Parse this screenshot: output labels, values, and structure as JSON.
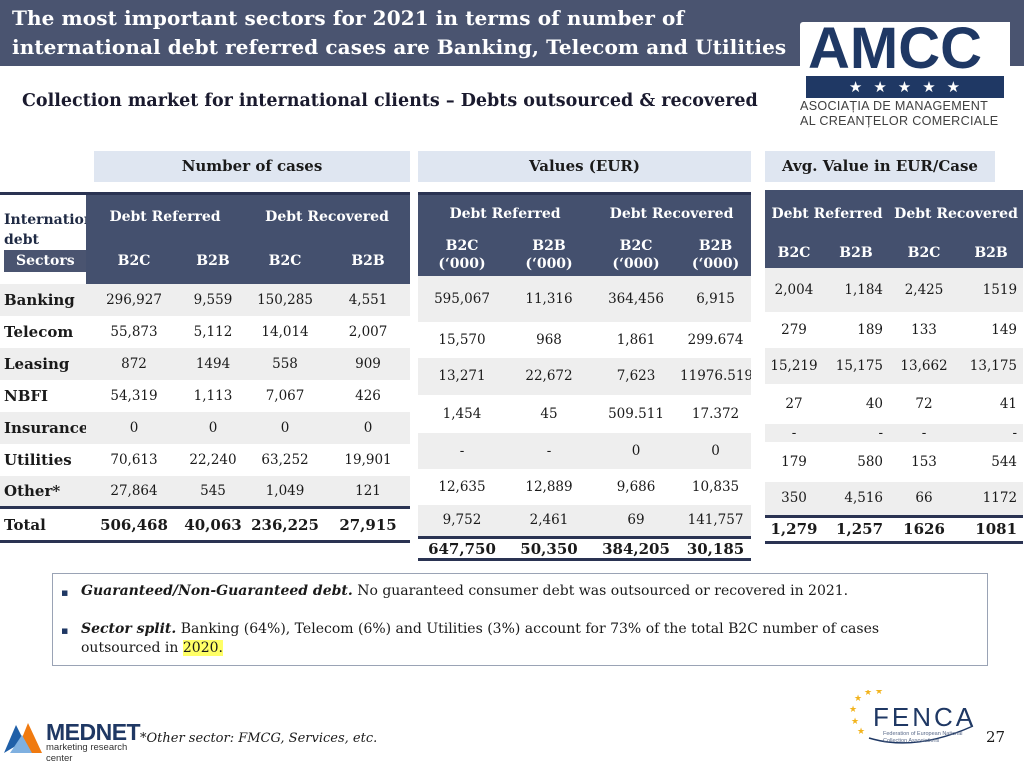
{
  "title": "The most important sectors for 2021 in terms of number of international debt referred cases are Banking, Telecom and Utilities",
  "logo": {
    "brand": "AMCC",
    "stars": "★★★★★",
    "subtitle_line1": "ASOCIAȚIA DE MANAGEMENT",
    "subtitle_line2": "AL CREANȚELOR COMERCIALE"
  },
  "subtitle": "Collection market for international clients – Debts outsourced & recovered",
  "groups": {
    "cases": "Number of cases",
    "values": "Values (EUR)",
    "avg": "Avg. Value in EUR/Case"
  },
  "cases_table": {
    "corner_label": "International debt",
    "sectors_label": "Sectors",
    "referred": "Debt Referred",
    "recovered": "Debt Recovered",
    "b2c": "B2C",
    "b2b": "B2B",
    "rows": [
      {
        "sector": "Banking",
        "ref_b2c": "296,927",
        "ref_b2b": "9,559",
        "rec_b2c": "150,285",
        "rec_b2b": "4,551"
      },
      {
        "sector": "Telecom",
        "ref_b2c": "55,873",
        "ref_b2b": "5,112",
        "rec_b2c": "14,014",
        "rec_b2b": "2,007"
      },
      {
        "sector": "Leasing",
        "ref_b2c": "872",
        "ref_b2b": "1494",
        "rec_b2c": "558",
        "rec_b2b": "909"
      },
      {
        "sector": "NBFI",
        "ref_b2c": "54,319",
        "ref_b2b": "1,113",
        "rec_b2c": "7,067",
        "rec_b2b": "426"
      },
      {
        "sector": "Insurance",
        "ref_b2c": "0",
        "ref_b2b": "0",
        "rec_b2c": "0",
        "rec_b2b": "0"
      },
      {
        "sector": "Utilities",
        "ref_b2c": "70,613",
        "ref_b2b": "22,240",
        "rec_b2c": "63,252",
        "rec_b2b": "19,901"
      },
      {
        "sector": "Other*",
        "ref_b2c": "27,864",
        "ref_b2b": "545",
        "rec_b2c": "1,049",
        "rec_b2b": "121"
      }
    ],
    "total": {
      "sector": "Total",
      "ref_b2c": "506,468",
      "ref_b2b": "40,063",
      "rec_b2c": "236,225",
      "rec_b2b": "27,915"
    }
  },
  "values_table": {
    "referred": "Debt Referred",
    "recovered": "Debt Recovered",
    "b2c": "B2C",
    "b2b": "B2B",
    "unit": "(‘000)",
    "rows": [
      {
        "ref_b2c": "595,067",
        "ref_b2b": "11,316",
        "rec_b2c": "364,456",
        "rec_b2b": "6,915"
      },
      {
        "ref_b2c": "15,570",
        "ref_b2b": "968",
        "rec_b2c": "1,861",
        "rec_b2b": "299.674"
      },
      {
        "ref_b2c": "13,271",
        "ref_b2b": "22,672",
        "rec_b2c": "7,623",
        "rec_b2b": "11976.519"
      },
      {
        "ref_b2c": "1,454",
        "ref_b2b": "45",
        "rec_b2c": "509.511",
        "rec_b2b": "17.372"
      },
      {
        "ref_b2c": "-",
        "ref_b2b": "-",
        "rec_b2c": "0",
        "rec_b2b": "0"
      },
      {
        "ref_b2c": "12,635",
        "ref_b2b": "12,889",
        "rec_b2c": "9,686",
        "rec_b2b": "10,835"
      },
      {
        "ref_b2c": "9,752",
        "ref_b2b": "2,461",
        "rec_b2c": "69",
        "rec_b2b": "141,757"
      }
    ],
    "total": {
      "ref_b2c": "647,750",
      "ref_b2b": "50,350",
      "rec_b2c": "384,205",
      "rec_b2b": "30,185"
    }
  },
  "avg_table": {
    "referred": "Debt Referred",
    "recovered": "Debt Recovered",
    "b2c": "B2C",
    "b2b": "B2B",
    "rows": [
      {
        "ref_b2c": "2,004",
        "ref_b2b": "1,184",
        "rec_b2c": "2,425",
        "rec_b2b": "1519"
      },
      {
        "ref_b2c": "279",
        "ref_b2b": "189",
        "rec_b2c": "133",
        "rec_b2b": "149"
      },
      {
        "ref_b2c": "15,219",
        "ref_b2b": "15,175",
        "rec_b2c": "13,662",
        "rec_b2b": "13,175"
      },
      {
        "ref_b2c": "27",
        "ref_b2b": "40",
        "rec_b2c": "72",
        "rec_b2b": "41"
      },
      {
        "ref_b2c": "-",
        "ref_b2b": "-",
        "rec_b2c": "-",
        "rec_b2b": "-"
      },
      {
        "ref_b2c": "179",
        "ref_b2b": "580",
        "rec_b2c": "153",
        "rec_b2b": "544"
      },
      {
        "ref_b2c": "350",
        "ref_b2b": "4,516",
        "rec_b2c": "66",
        "rec_b2b": "1172"
      }
    ],
    "total": {
      "ref_b2c": "1,279",
      "ref_b2b": "1,257",
      "rec_b2c": "1626",
      "rec_b2b": "1081"
    }
  },
  "notes": [
    {
      "bullet": "▪",
      "lead": "Guaranteed/Non-Guaranteed debt.",
      "text": " No guaranteed consumer debt was outsourced or recovered in 2021."
    },
    {
      "bullet": "▪",
      "lead": "Sector split.",
      "text": " Banking (64%), Telecom (6%) and Utilities (3%) account for 73% of the total B2C number of cases outsourced in ",
      "highlight": "2020."
    }
  ],
  "footer": {
    "mednet_name": "MEDNET",
    "mednet_tag": "marketing research center",
    "footnote": "*Other sector: FMCG, Services, etc.",
    "fenca_name": "FENCA",
    "fenca_sub": "Federation of European National Collection Associations",
    "page_number": "27"
  },
  "colors": {
    "title_bar": "#4a5470",
    "header_fill": "#44506e",
    "group_fill": "#dfe6f1",
    "logo_navy": "#1f3864",
    "highlight": "#ffff66"
  }
}
